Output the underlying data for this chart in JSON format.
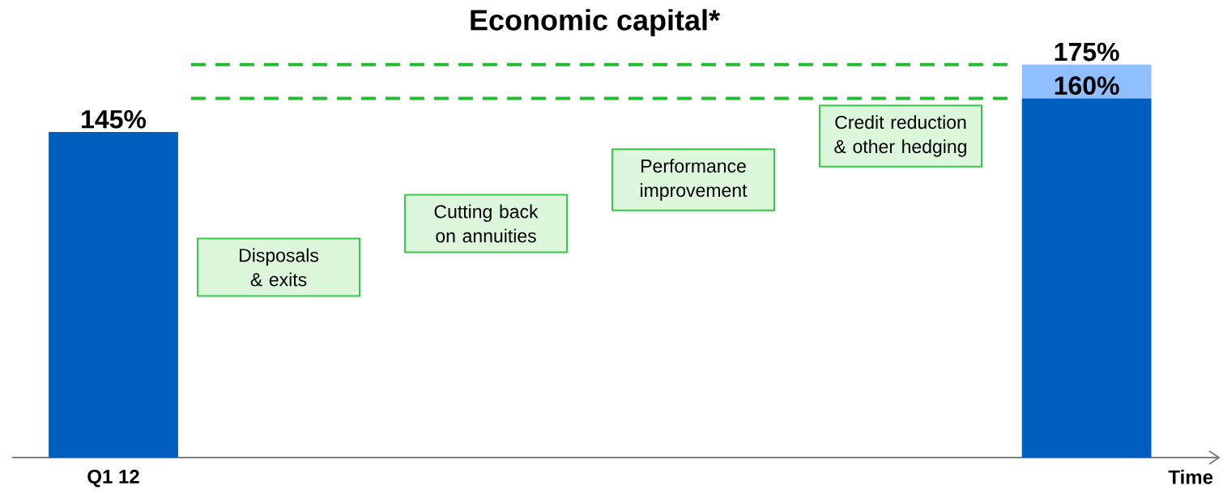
{
  "chart_data": {
    "type": "bar",
    "title": "Economic capital*",
    "xlabel": "Time",
    "categories": [
      "Q1 12",
      null
    ],
    "stacked": true,
    "series": [
      {
        "color": "#005ebf",
        "values": [
          145,
          160
        ],
        "value_labels": [
          "145%",
          "160%"
        ]
      },
      {
        "color": "#8fbfff",
        "values": [
          null,
          15
        ]
      }
    ],
    "totals": [
      null,
      "175%"
    ],
    "ref_lines": [
      {
        "axis": "y",
        "value": 160,
        "color": "#22bb33",
        "line_style": "dashed"
      },
      {
        "axis": "y",
        "value": 175,
        "color": "#22bb33",
        "line_style": "dashed"
      }
    ],
    "annotations": [
      "Disposals & exits",
      "Cutting back on annuities",
      "Performance improvement",
      "Credit reduction & other hedging"
    ]
  }
}
